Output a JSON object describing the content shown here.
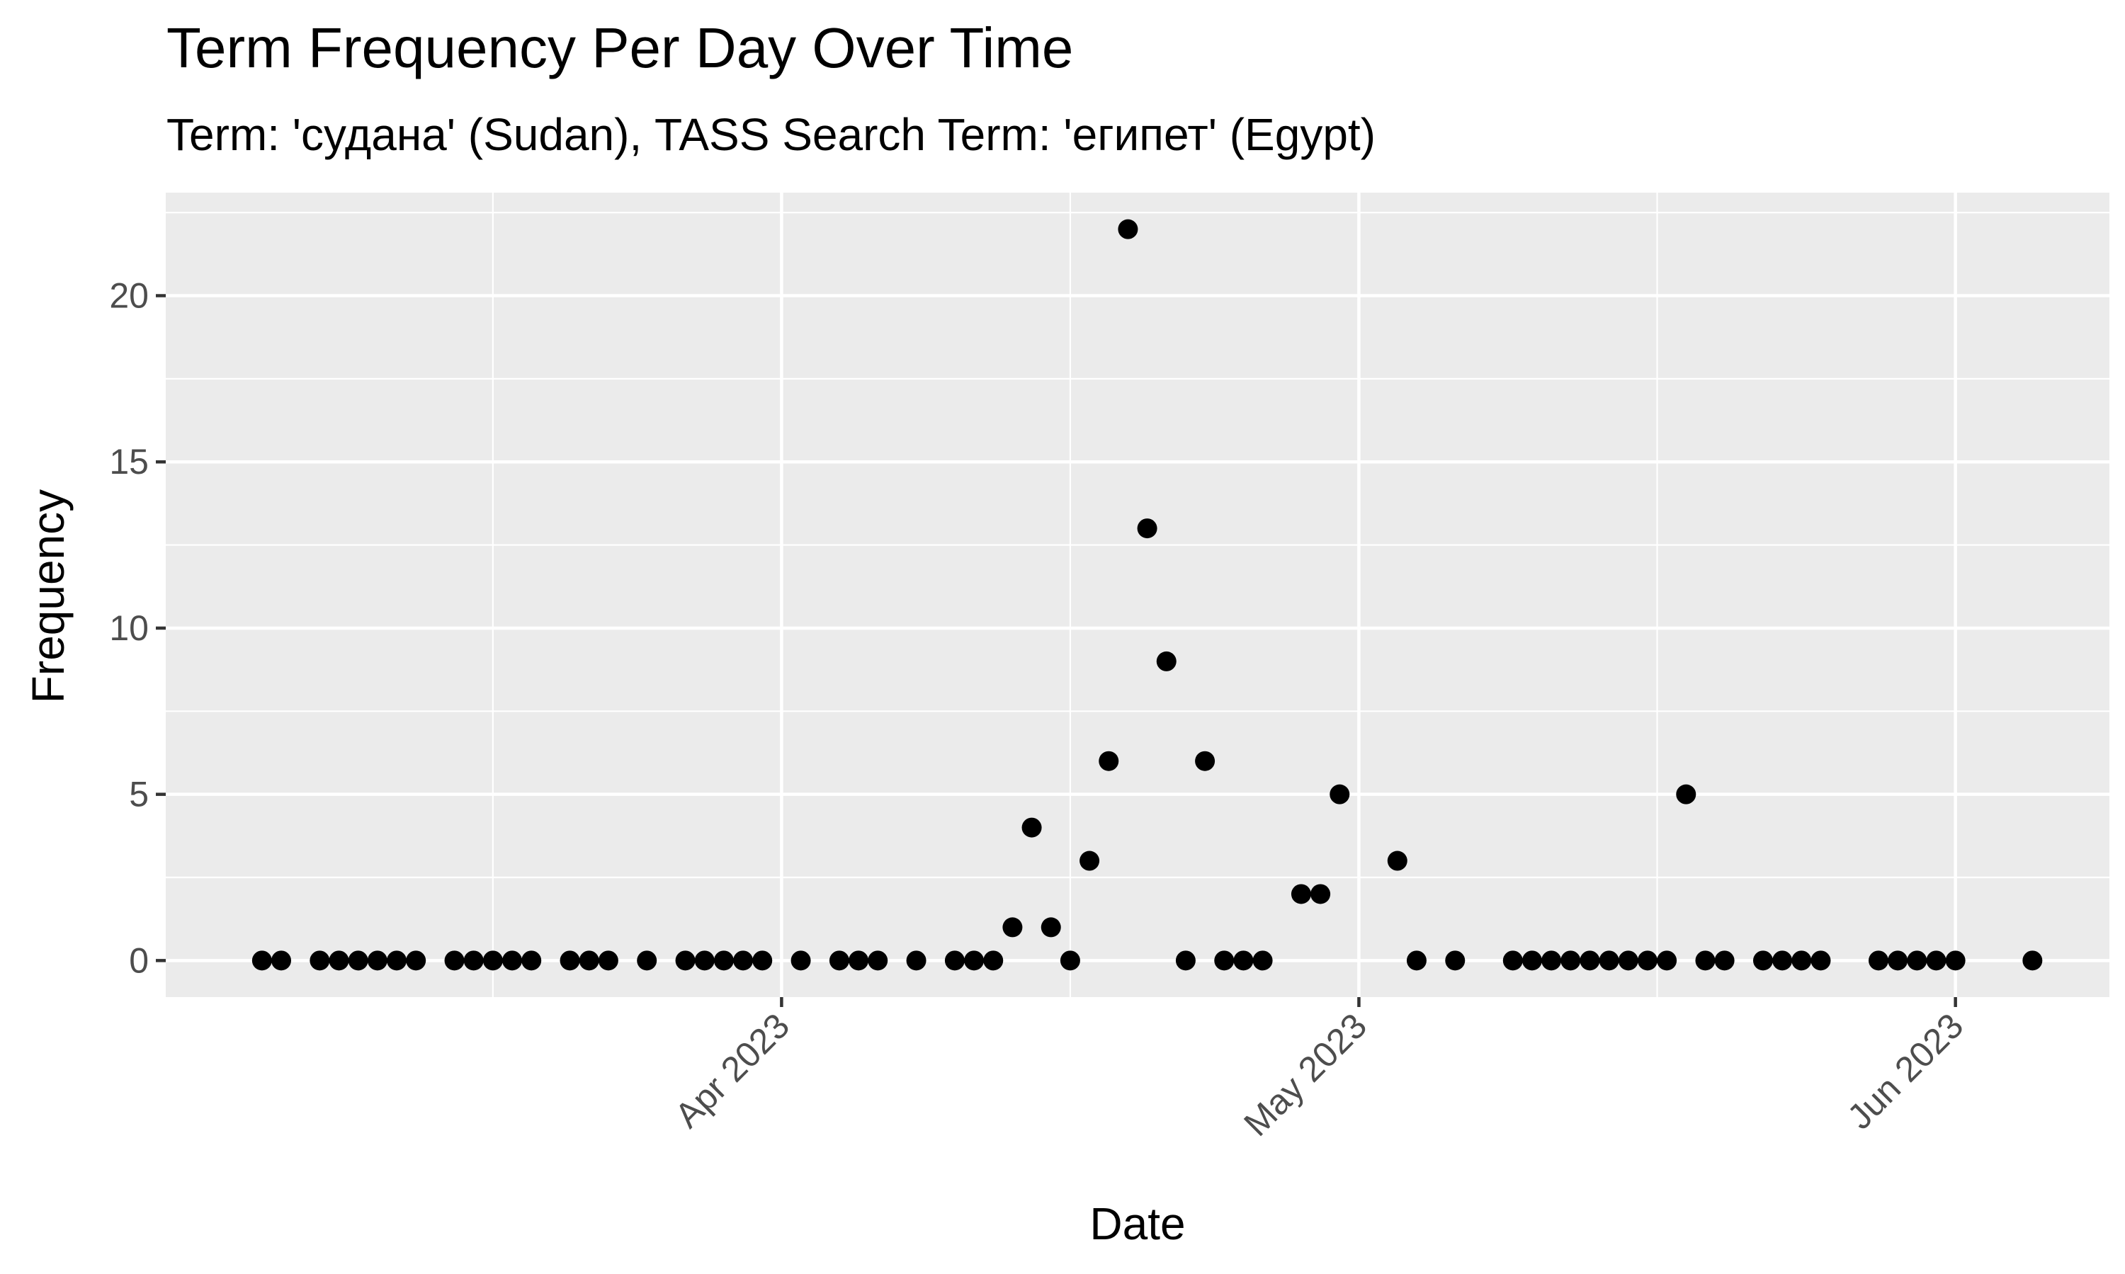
{
  "chart_data": {
    "type": "scatter",
    "title": "Term Frequency Per Day Over Time",
    "subtitle": "Term: 'судана' (Sudan), TASS Search Term: 'египет' (Egypt)",
    "xlabel": "Date",
    "ylabel": "Frequency",
    "x_tick_labels": [
      {
        "date": "2023-04-01",
        "label": "Apr 2023"
      },
      {
        "date": "2023-05-01",
        "label": "May 2023"
      },
      {
        "date": "2023-06-01",
        "label": "Jun 2023"
      }
    ],
    "y_ticks": [
      0,
      5,
      10,
      15,
      20
    ],
    "xlim": [
      "2023-02-28",
      "2023-06-09"
    ],
    "ylim": [
      -1.1,
      23.1
    ],
    "grid": true,
    "colors": {
      "panel": "#ebebeb",
      "grid": "#ffffff",
      "point": "#000000",
      "tick_text": "#4d4d4d"
    },
    "points": [
      {
        "x": "2023-03-05",
        "y": 0
      },
      {
        "x": "2023-03-06",
        "y": 0
      },
      {
        "x": "2023-03-08",
        "y": 0
      },
      {
        "x": "2023-03-09",
        "y": 0
      },
      {
        "x": "2023-03-10",
        "y": 0
      },
      {
        "x": "2023-03-11",
        "y": 0
      },
      {
        "x": "2023-03-12",
        "y": 0
      },
      {
        "x": "2023-03-13",
        "y": 0
      },
      {
        "x": "2023-03-15",
        "y": 0
      },
      {
        "x": "2023-03-16",
        "y": 0
      },
      {
        "x": "2023-03-17",
        "y": 0
      },
      {
        "x": "2023-03-18",
        "y": 0
      },
      {
        "x": "2023-03-19",
        "y": 0
      },
      {
        "x": "2023-03-21",
        "y": 0
      },
      {
        "x": "2023-03-22",
        "y": 0
      },
      {
        "x": "2023-03-23",
        "y": 0
      },
      {
        "x": "2023-03-25",
        "y": 0
      },
      {
        "x": "2023-03-27",
        "y": 0
      },
      {
        "x": "2023-03-28",
        "y": 0
      },
      {
        "x": "2023-03-29",
        "y": 0
      },
      {
        "x": "2023-03-30",
        "y": 0
      },
      {
        "x": "2023-03-31",
        "y": 0
      },
      {
        "x": "2023-04-02",
        "y": 0
      },
      {
        "x": "2023-04-04",
        "y": 0
      },
      {
        "x": "2023-04-05",
        "y": 0
      },
      {
        "x": "2023-04-06",
        "y": 0
      },
      {
        "x": "2023-04-08",
        "y": 0
      },
      {
        "x": "2023-04-10",
        "y": 0
      },
      {
        "x": "2023-04-11",
        "y": 0
      },
      {
        "x": "2023-04-12",
        "y": 0
      },
      {
        "x": "2023-04-13",
        "y": 1
      },
      {
        "x": "2023-04-14",
        "y": 4
      },
      {
        "x": "2023-04-15",
        "y": 1
      },
      {
        "x": "2023-04-16",
        "y": 0
      },
      {
        "x": "2023-04-17",
        "y": 3
      },
      {
        "x": "2023-04-18",
        "y": 6
      },
      {
        "x": "2023-04-19",
        "y": 22
      },
      {
        "x": "2023-04-20",
        "y": 13
      },
      {
        "x": "2023-04-21",
        "y": 9
      },
      {
        "x": "2023-04-22",
        "y": 0
      },
      {
        "x": "2023-04-23",
        "y": 6
      },
      {
        "x": "2023-04-24",
        "y": 0
      },
      {
        "x": "2023-04-25",
        "y": 0
      },
      {
        "x": "2023-04-26",
        "y": 0
      },
      {
        "x": "2023-04-28",
        "y": 2
      },
      {
        "x": "2023-04-29",
        "y": 2
      },
      {
        "x": "2023-04-30",
        "y": 5
      },
      {
        "x": "2023-05-03",
        "y": 3
      },
      {
        "x": "2023-05-04",
        "y": 0
      },
      {
        "x": "2023-05-06",
        "y": 0
      },
      {
        "x": "2023-05-09",
        "y": 0
      },
      {
        "x": "2023-05-10",
        "y": 0
      },
      {
        "x": "2023-05-11",
        "y": 0
      },
      {
        "x": "2023-05-12",
        "y": 0
      },
      {
        "x": "2023-05-13",
        "y": 0
      },
      {
        "x": "2023-05-14",
        "y": 0
      },
      {
        "x": "2023-05-15",
        "y": 0
      },
      {
        "x": "2023-05-16",
        "y": 0
      },
      {
        "x": "2023-05-17",
        "y": 0
      },
      {
        "x": "2023-05-18",
        "y": 5
      },
      {
        "x": "2023-05-19",
        "y": 0
      },
      {
        "x": "2023-05-20",
        "y": 0
      },
      {
        "x": "2023-05-22",
        "y": 0
      },
      {
        "x": "2023-05-23",
        "y": 0
      },
      {
        "x": "2023-05-24",
        "y": 0
      },
      {
        "x": "2023-05-25",
        "y": 0
      },
      {
        "x": "2023-05-28",
        "y": 0
      },
      {
        "x": "2023-05-29",
        "y": 0
      },
      {
        "x": "2023-05-30",
        "y": 0
      },
      {
        "x": "2023-05-31",
        "y": 0
      },
      {
        "x": "2023-06-01",
        "y": 0
      },
      {
        "x": "2023-06-05",
        "y": 0
      }
    ]
  }
}
